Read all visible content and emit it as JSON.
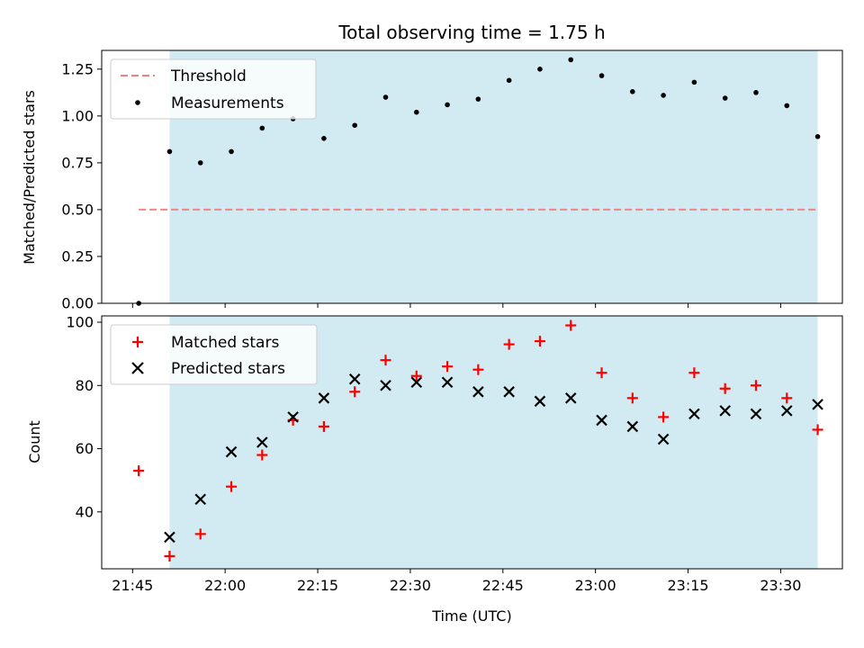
{
  "chart_data": [
    {
      "type": "scatter",
      "title": "Total observing time = 1.75 h",
      "xlabel": "",
      "ylabel": "Matched/Predicted stars",
      "xlim": [
        "21:40",
        "23:40"
      ],
      "ylim": [
        0,
        1.35
      ],
      "yticks": [
        "0.00",
        "0.25",
        "0.50",
        "0.75",
        "1.00",
        "1.25"
      ],
      "shaded_region": [
        "21:51",
        "23:36"
      ],
      "shaded_color": "#add8e6",
      "legend_position": "upper left",
      "x_times": [
        "21:46",
        "21:51",
        "21:56",
        "22:01",
        "22:06",
        "22:11",
        "22:16",
        "22:21",
        "22:26",
        "22:31",
        "22:36",
        "22:41",
        "22:46",
        "22:51",
        "22:56",
        "23:01",
        "23:06",
        "23:11",
        "23:16",
        "23:21",
        "23:26",
        "23:31",
        "23:36"
      ],
      "series": [
        {
          "name": "Threshold",
          "kind": "dashed-line",
          "color": "#f08080",
          "x": [
            "21:46",
            "23:36"
          ],
          "values": [
            0.5,
            0.5
          ]
        },
        {
          "name": "Measurements",
          "kind": "dot",
          "color": "#000000",
          "values": [
            0.0,
            0.81,
            0.75,
            0.81,
            0.935,
            0.985,
            0.88,
            0.95,
            1.1,
            1.02,
            1.06,
            1.09,
            1.19,
            1.25,
            1.3,
            1.215,
            1.13,
            1.11,
            1.18,
            1.095,
            1.125,
            1.055,
            0.89
          ]
        }
      ]
    },
    {
      "type": "scatter",
      "title": "",
      "xlabel": "Time (UTC)",
      "ylabel": "Count",
      "xlim": [
        "21:40",
        "23:40"
      ],
      "ylim": [
        22,
        102
      ],
      "yticks": [
        "40",
        "60",
        "80",
        "100"
      ],
      "xticks": [
        "21:45",
        "22:00",
        "22:15",
        "22:30",
        "22:45",
        "23:00",
        "23:15",
        "23:30"
      ],
      "shaded_region": [
        "21:51",
        "23:36"
      ],
      "shaded_color": "#add8e6",
      "legend_position": "upper left",
      "series": [
        {
          "name": "Matched stars",
          "kind": "plus",
          "color": "#ff0000",
          "x": [
            "21:46",
            "21:51",
            "21:56",
            "22:01",
            "22:06",
            "22:11",
            "22:16",
            "22:21",
            "22:26",
            "22:31",
            "22:36",
            "22:41",
            "22:46",
            "22:51",
            "22:56",
            "23:01",
            "23:06",
            "23:11",
            "23:16",
            "23:21",
            "23:26",
            "23:31",
            "23:36"
          ],
          "values": [
            53,
            26,
            33,
            48,
            58,
            69,
            67,
            78,
            88,
            83,
            86,
            85,
            93,
            94,
            99,
            84,
            76,
            70,
            84,
            79,
            80,
            76,
            66
          ]
        },
        {
          "name": "Predicted stars",
          "kind": "x",
          "color": "#000000",
          "x": [
            "21:51",
            "21:56",
            "22:01",
            "22:06",
            "22:11",
            "22:16",
            "22:21",
            "22:26",
            "22:31",
            "22:36",
            "22:41",
            "22:46",
            "22:51",
            "22:56",
            "23:01",
            "23:06",
            "23:11",
            "23:16",
            "23:21",
            "23:26",
            "23:31",
            "23:36"
          ],
          "values": [
            32,
            44,
            59,
            62,
            70,
            76,
            82,
            80,
            81,
            81,
            78,
            78,
            75,
            76,
            69,
            67,
            63,
            71,
            72,
            71,
            72,
            74
          ]
        }
      ]
    }
  ]
}
